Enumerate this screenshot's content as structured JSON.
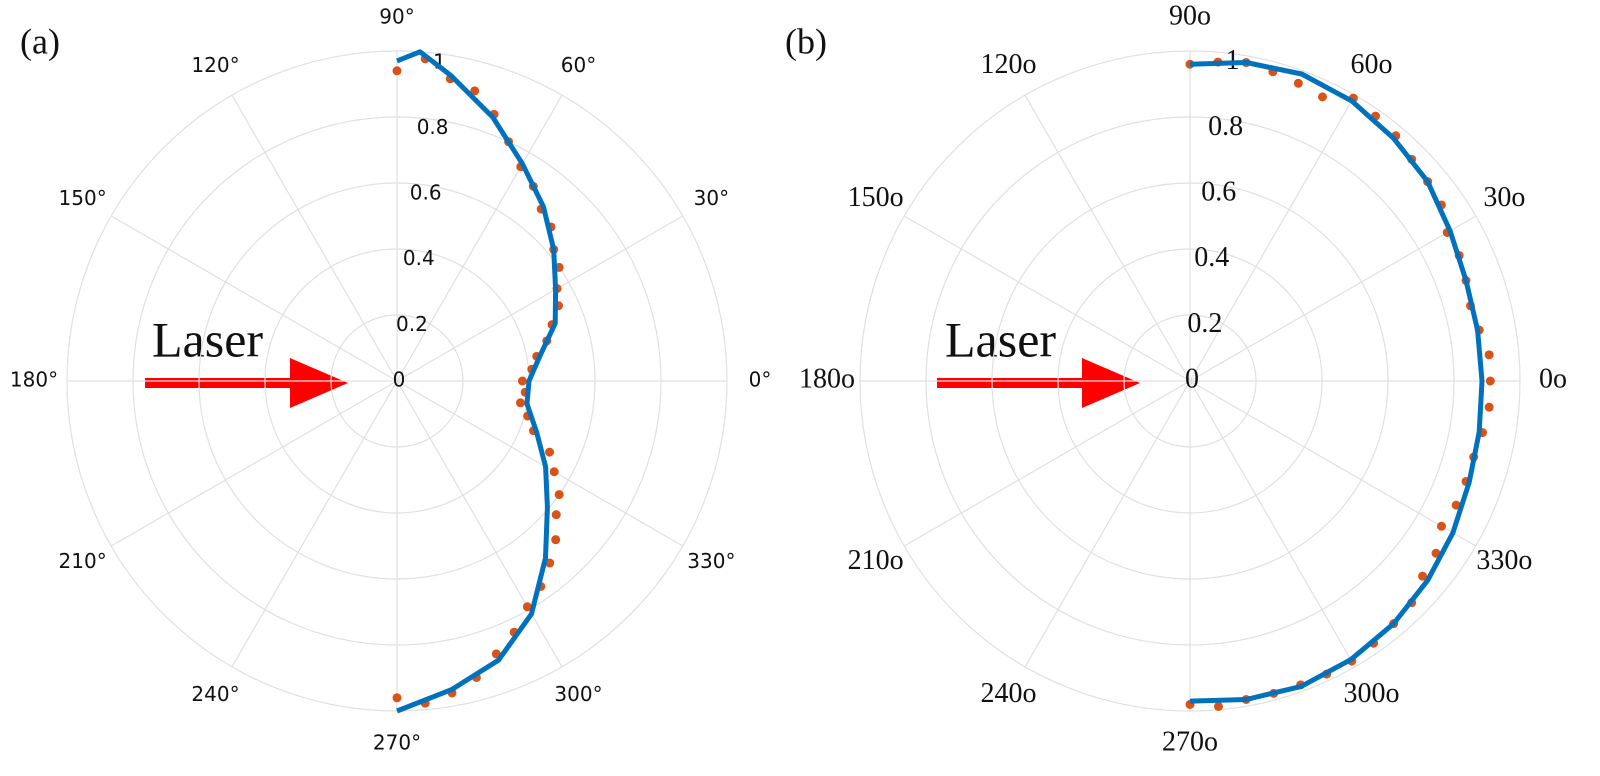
{
  "chart_data": [
    {
      "type": "polar",
      "panel_label": "(a)",
      "annotation": "Laser",
      "rlim": [
        0,
        1
      ],
      "rticks": [
        0,
        0.2,
        0.4,
        0.6,
        0.8,
        1
      ],
      "thetaticks": [
        {
          "value": 0,
          "label": "0°"
        },
        {
          "value": 30,
          "label": "30°"
        },
        {
          "value": 60,
          "label": "60°"
        },
        {
          "value": 90,
          "label": "90°"
        },
        {
          "value": 120,
          "label": "120°"
        },
        {
          "value": 150,
          "label": "150°"
        },
        {
          "value": 180,
          "label": "180°"
        },
        {
          "value": 210,
          "label": "210°"
        },
        {
          "value": 240,
          "label": "240°"
        },
        {
          "value": 270,
          "label": "270°"
        },
        {
          "value": 300,
          "label": "300°"
        },
        {
          "value": 330,
          "label": "330°"
        }
      ],
      "grid": true,
      "series": [
        {
          "type": "scatter",
          "color": "#d95319",
          "theta": [
            90,
            85,
            80,
            75,
            70,
            65,
            60,
            55,
            50,
            45,
            40,
            35,
            30,
            25,
            20,
            15,
            10,
            5,
            0,
            -5,
            -10,
            -15,
            -20,
            -25,
            -30,
            -35,
            -40,
            -45,
            -50,
            -55,
            -60,
            -65,
            -70,
            -75,
            -80,
            -85,
            -90
          ],
          "values": [
            0.94,
            0.98,
            0.93,
            0.91,
            0.86,
            0.8,
            0.75,
            0.72,
            0.68,
            0.66,
            0.62,
            0.6,
            0.56,
            0.54,
            0.5,
            0.47,
            0.43,
            0.41,
            0.38,
            0.39,
            0.38,
            0.41,
            0.44,
            0.51,
            0.55,
            0.6,
            0.63,
            0.68,
            0.72,
            0.76,
            0.79,
            0.84,
            0.88,
            0.93,
            0.96,
            0.98,
            0.96
          ]
        },
        {
          "type": "line",
          "color": "#0072bd",
          "theta": [
            90,
            86,
            80,
            70,
            60,
            50,
            40,
            30,
            20,
            10,
            0,
            -10,
            -20,
            -30,
            -40,
            -50,
            -60,
            -70,
            -80,
            -90
          ],
          "values": [
            0.97,
            1.0,
            0.94,
            0.85,
            0.76,
            0.69,
            0.62,
            0.555,
            0.51,
            0.44,
            0.4,
            0.4,
            0.45,
            0.52,
            0.595,
            0.7,
            0.815,
            0.9,
            0.95,
            1.0
          ]
        }
      ]
    },
    {
      "type": "polar",
      "panel_label": "(b)",
      "annotation": "Laser",
      "rlim": [
        0,
        1
      ],
      "rticks": [
        0,
        0.2,
        0.4,
        0.6,
        0.8,
        1
      ],
      "thetaticks": [
        {
          "value": 0,
          "label": "0o"
        },
        {
          "value": 30,
          "label": "30o"
        },
        {
          "value": 60,
          "label": "60o"
        },
        {
          "value": 90,
          "label": "90o"
        },
        {
          "value": 120,
          "label": "120o"
        },
        {
          "value": 150,
          "label": "150o"
        },
        {
          "value": 180,
          "label": "180o"
        },
        {
          "value": 210,
          "label": "210o"
        },
        {
          "value": 240,
          "label": "240o"
        },
        {
          "value": 270,
          "label": "270o"
        },
        {
          "value": 300,
          "label": "300o"
        },
        {
          "value": 330,
          "label": "330o"
        }
      ],
      "grid": true,
      "series": [
        {
          "type": "scatter",
          "color": "#d95319",
          "theta": [
            90,
            85,
            80,
            75,
            70,
            65,
            60,
            55,
            50,
            45,
            40,
            35,
            30,
            25,
            20,
            15,
            10,
            5,
            0,
            -5,
            -10,
            -15,
            -20,
            -25,
            -30,
            -35,
            -40,
            -45,
            -50,
            -55,
            -60,
            -65,
            -70,
            -75,
            -80,
            -85,
            -90
          ],
          "values": [
            0.96,
            0.97,
            0.98,
            0.97,
            0.96,
            0.95,
            0.99,
            0.98,
            0.97,
            0.95,
            0.94,
            0.93,
            0.9,
            0.9,
            0.89,
            0.88,
            0.89,
            0.91,
            0.91,
            0.91,
            0.9,
            0.89,
            0.89,
            0.89,
            0.88,
            0.91,
            0.92,
            0.95,
            0.96,
            0.97,
            0.98,
            0.98,
            0.98,
            0.98,
            0.98,
            0.99,
            0.98
          ]
        },
        {
          "type": "line",
          "color": "#0072bd",
          "theta": [
            90,
            80,
            70,
            60,
            50,
            40,
            30,
            20,
            10,
            0,
            -10,
            -20,
            -30,
            -40,
            -50,
            -60,
            -70,
            -80,
            -90
          ],
          "values": [
            0.96,
            0.98,
            0.99,
            0.98,
            0.96,
            0.94,
            0.91,
            0.89,
            0.885,
            0.885,
            0.89,
            0.9,
            0.92,
            0.94,
            0.96,
            0.975,
            0.985,
            0.98,
            0.97
          ]
        }
      ]
    }
  ]
}
